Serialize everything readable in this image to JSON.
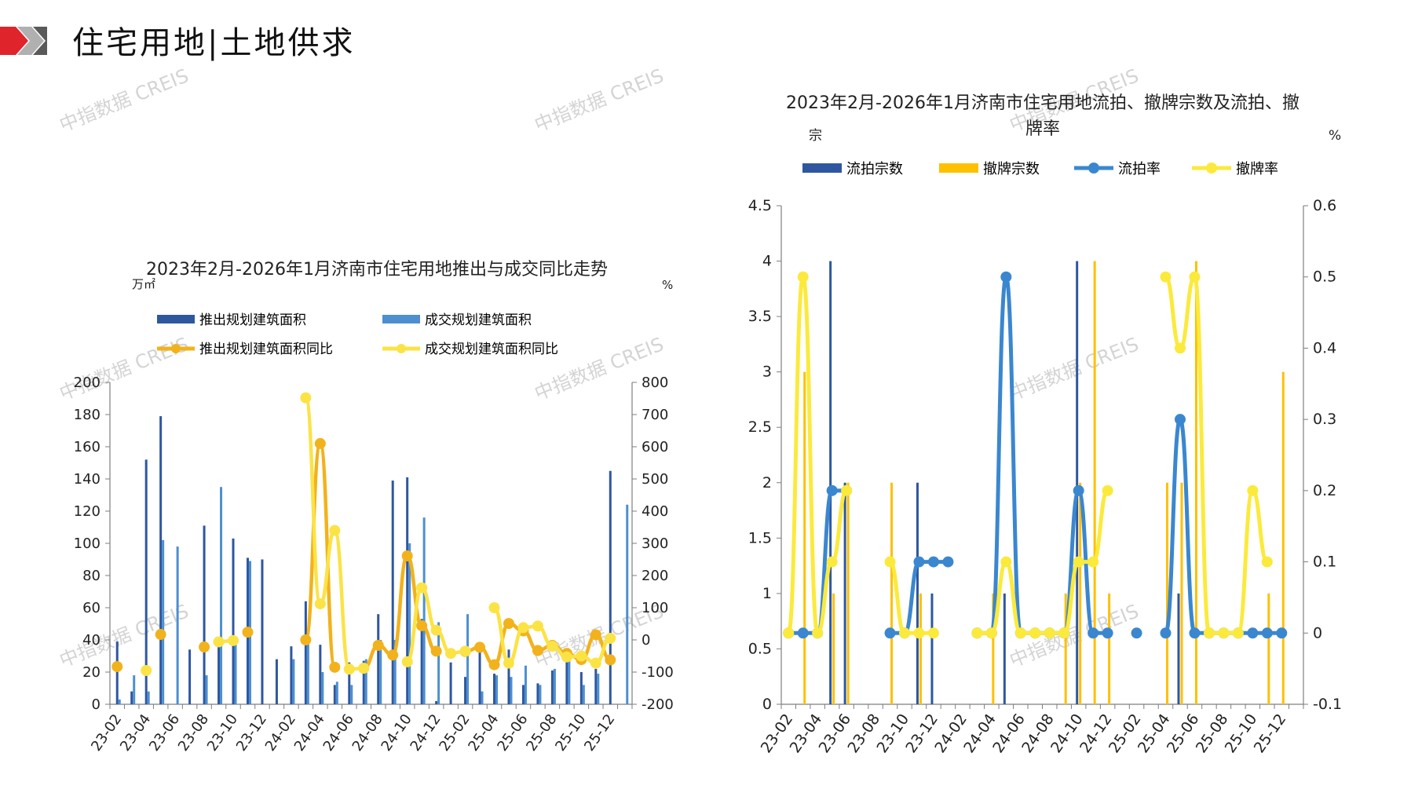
{
  "page": {
    "title": "住宅用地|土地供求",
    "watermark": "中指数据 CREIS"
  },
  "x_ticks": [
    "23-02",
    "23-04",
    "23-06",
    "23-08",
    "23-10",
    "23-12",
    "24-02",
    "24-04",
    "24-06",
    "24-08",
    "24-10",
    "24-12",
    "25-02",
    "25-04",
    "25-06",
    "25-08",
    "25-10",
    "25-12"
  ],
  "chart_data": [
    {
      "type": "bar",
      "title": "2023年2月-2026年1月济南市住宅用地推出与成交同比走势",
      "y_unit_left": "万㎡",
      "y_unit_right": "%",
      "ylim_left": [
        0,
        200
      ],
      "yticks_left": [
        "0",
        "20",
        "40",
        "60",
        "80",
        "100",
        "120",
        "140",
        "160",
        "180",
        "200"
      ],
      "ylim_right": [
        -200,
        800
      ],
      "yticks_right": [
        "-200",
        "-100",
        "0",
        "100",
        "200",
        "300",
        "400",
        "500",
        "600",
        "700",
        "800"
      ],
      "categories": [
        "23-02",
        "23-03",
        "23-04",
        "23-05",
        "23-06",
        "23-07",
        "23-08",
        "23-09",
        "23-10",
        "23-11",
        "23-12",
        "24-01",
        "24-02",
        "24-03",
        "24-04",
        "24-05",
        "24-06",
        "24-07",
        "24-08",
        "24-09",
        "24-10",
        "24-11",
        "24-12",
        "25-01",
        "25-02",
        "25-03",
        "25-04",
        "25-05",
        "25-06",
        "25-07",
        "25-08",
        "25-09",
        "25-10",
        "25-11",
        "25-12",
        "26-01"
      ],
      "series": [
        {
          "name": "推出规划建筑面积",
          "type": "bar",
          "axis": "left",
          "color": "#2e57a0",
          "values": [
            39,
            8,
            152,
            179,
            0,
            34,
            111,
            36,
            103,
            91,
            90,
            28,
            36,
            64,
            37,
            12,
            26,
            27,
            56,
            139,
            141,
            53,
            2,
            26,
            17,
            38,
            19,
            34,
            12,
            13,
            21,
            28,
            20,
            22,
            145,
            0
          ]
        },
        {
          "name": "成交规划建筑面积",
          "type": "bar",
          "axis": "left",
          "color": "#4d8fd0",
          "values": [
            3,
            18,
            8,
            102,
            98,
            0,
            18,
            135,
            38,
            89,
            0,
            0,
            28,
            40,
            20,
            14,
            12,
            28,
            40,
            40,
            100,
            116,
            51,
            0,
            56,
            8,
            18,
            17,
            24,
            12,
            22,
            29,
            12,
            19,
            0,
            124
          ]
        },
        {
          "name": "推出规划建筑面积同比",
          "type": "line",
          "axis": "right",
          "color": "#f2b21b",
          "points": [
            [
              0,
              -83
            ],
            [
              3,
              17
            ],
            [
              6,
              -22
            ],
            [
              9,
              24
            ],
            [
              13,
              0
            ],
            [
              14,
              610
            ],
            [
              15,
              -85
            ],
            [
              17,
              -88
            ],
            [
              18,
              -17
            ],
            [
              19,
              -47
            ],
            [
              20,
              261
            ],
            [
              21,
              44
            ],
            [
              22,
              -35
            ],
            [
              24,
              -36
            ],
            [
              25,
              -23
            ],
            [
              26,
              -77
            ],
            [
              27,
              51
            ],
            [
              28,
              28
            ],
            [
              29,
              -33
            ],
            [
              30,
              -17
            ],
            [
              31,
              -42
            ],
            [
              32,
              -61
            ],
            [
              33,
              16
            ],
            [
              34,
              -62
            ]
          ]
        },
        {
          "name": "成交规划建筑面积同比",
          "type": "line",
          "axis": "right",
          "color": "#fbe346",
          "points": [
            [
              2,
              -95
            ],
            [
              7,
              -6
            ],
            [
              8,
              -2
            ],
            [
              13,
              752
            ],
            [
              14,
              112
            ],
            [
              15,
              340
            ],
            [
              16,
              -91
            ],
            [
              17,
              -88
            ],
            [
              20,
              -68
            ],
            [
              21,
              162
            ],
            [
              22,
              30
            ],
            [
              23,
              -42
            ],
            [
              24,
              -35
            ],
            [
              26,
              100
            ],
            [
              27,
              -72
            ],
            [
              28,
              38
            ],
            [
              29,
              43
            ],
            [
              30,
              -20
            ],
            [
              31,
              -53
            ],
            [
              32,
              -50
            ],
            [
              33,
              -72
            ],
            [
              34,
              5
            ]
          ]
        }
      ]
    },
    {
      "type": "bar",
      "title": "2023年2月-2026年1月济南市住宅用地流拍、撤牌宗数及流拍、撤牌率",
      "y_unit_left": "宗",
      "y_unit_right": "%",
      "ylim_left": [
        0,
        4.5
      ],
      "yticks_left": [
        "0",
        "0.5",
        "1",
        "1.5",
        "2",
        "2.5",
        "3",
        "3.5",
        "4",
        "4.5"
      ],
      "ylim_right": [
        -0.1,
        0.6
      ],
      "yticks_right": [
        "-0.1",
        "0",
        "0.1",
        "0.2",
        "0.3",
        "0.4",
        "0.5",
        "0.6"
      ],
      "categories": [
        "23-02",
        "23-03",
        "23-04",
        "23-05",
        "23-06",
        "23-07",
        "23-08",
        "23-09",
        "23-10",
        "23-11",
        "23-12",
        "24-01",
        "24-02",
        "24-03",
        "24-04",
        "24-05",
        "24-06",
        "24-07",
        "24-08",
        "24-09",
        "24-10",
        "24-11",
        "24-12",
        "25-01",
        "25-02",
        "25-03",
        "25-04",
        "25-05",
        "25-06",
        "25-07",
        "25-08",
        "25-09",
        "25-10",
        "25-11",
        "25-12",
        "26-01"
      ],
      "series": [
        {
          "name": "流拍宗数",
          "type": "bar",
          "axis": "left",
          "color": "#2e57a0",
          "values": [
            0,
            0,
            0,
            4,
            2,
            0,
            0,
            0,
            0,
            2,
            1,
            0,
            0,
            0,
            0,
            1,
            0,
            0,
            0,
            0,
            4,
            0,
            0,
            0,
            0,
            0,
            0,
            1,
            0,
            0,
            0,
            0,
            0,
            0,
            0,
            0
          ]
        },
        {
          "name": "撤牌宗数",
          "type": "bar",
          "axis": "left",
          "color": "#ffc000",
          "values": [
            0,
            3,
            0,
            1,
            2,
            0,
            0,
            2,
            0,
            1,
            0,
            0,
            0,
            0,
            1,
            0,
            0,
            0,
            0,
            1,
            2,
            4,
            1,
            0,
            0,
            0,
            2,
            2,
            4,
            0,
            0,
            0,
            0,
            1,
            3,
            0
          ]
        },
        {
          "name": "流拍率",
          "type": "line",
          "axis": "right",
          "color": "#3a87d0",
          "points": [
            [
              0,
              0
            ],
            [
              1,
              0
            ],
            [
              2,
              0
            ],
            [
              3,
              0.2
            ],
            [
              4,
              0.2
            ],
            [
              7,
              0
            ],
            [
              8,
              0
            ],
            [
              9,
              0.1
            ],
            [
              10,
              0.1
            ],
            [
              11,
              0.1
            ],
            [
              12,
              null
            ],
            [
              13,
              0
            ],
            [
              14,
              0
            ],
            [
              15,
              0.5
            ],
            [
              16,
              0
            ],
            [
              17,
              0
            ],
            [
              18,
              0
            ],
            [
              19,
              0
            ],
            [
              20,
              0.2
            ],
            [
              21,
              0
            ],
            [
              22,
              0
            ],
            [
              24,
              0
            ],
            [
              26,
              0
            ],
            [
              27,
              0.3
            ],
            [
              28,
              0
            ],
            [
              29,
              0
            ],
            [
              30,
              0
            ],
            [
              31,
              0
            ],
            [
              32,
              0
            ],
            [
              33,
              0
            ],
            [
              34,
              0
            ]
          ]
        },
        {
          "name": "撤牌率",
          "type": "line",
          "axis": "right",
          "color": "#fbea3c",
          "points": [
            [
              0,
              0
            ],
            [
              1,
              0.5
            ],
            [
              2,
              0
            ],
            [
              3,
              0.1
            ],
            [
              4,
              0.2
            ],
            [
              7,
              0.1
            ],
            [
              8,
              0
            ],
            [
              9,
              0
            ],
            [
              10,
              0
            ],
            [
              13,
              0
            ],
            [
              14,
              0
            ],
            [
              15,
              0.1
            ],
            [
              16,
              0
            ],
            [
              17,
              0
            ],
            [
              18,
              0
            ],
            [
              19,
              0
            ],
            [
              20,
              0.1
            ],
            [
              21,
              0.1
            ],
            [
              22,
              0.2
            ],
            [
              26,
              0.5
            ],
            [
              27,
              0.4
            ],
            [
              28,
              0.5
            ],
            [
              29,
              0
            ],
            [
              30,
              0
            ],
            [
              31,
              0
            ],
            [
              32,
              0.2
            ],
            [
              33,
              0.1
            ]
          ]
        }
      ]
    }
  ]
}
